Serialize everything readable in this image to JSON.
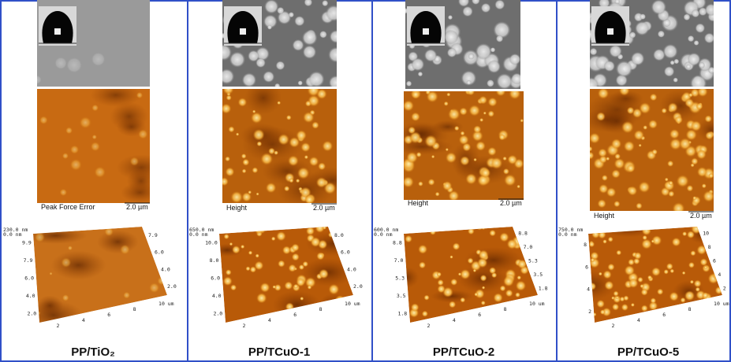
{
  "panels": [
    {
      "caption": "PP/TiO₂",
      "afm_label": "Peak Force Error",
      "scale_bar": "2.0 µm",
      "z_range": [
        "230.0 nm",
        "0.0 nm"
      ],
      "left_axis": [
        "9.9",
        "7.9",
        "6.0",
        "4.0",
        "2.0"
      ],
      "right_axis": [
        "7.9",
        "6.0",
        "4.0",
        "2.0"
      ],
      "bottom_axis": [
        "2",
        "4",
        "6",
        "8",
        "10 um"
      ]
    },
    {
      "caption": "PP/TCuO-1",
      "afm_label": "Height",
      "scale_bar": "2.0 µm",
      "z_range": [
        "650.0 nm",
        "0.0 nm"
      ],
      "left_axis": [
        "10.0",
        "8.0",
        "6.0",
        "4.0",
        "2.0"
      ],
      "right_axis": [
        "8.0",
        "6.0",
        "4.0",
        "2.0"
      ],
      "bottom_axis": [
        "2",
        "4",
        "6",
        "8",
        "10 um"
      ]
    },
    {
      "caption": "PP/TCuO-2",
      "afm_label": "Height",
      "scale_bar": "2.0 µm",
      "z_range": [
        "600.0 nm",
        "0.0 nm"
      ],
      "left_axis": [
        "8.8",
        "7.0",
        "5.3",
        "3.5",
        "1.8"
      ],
      "right_axis": [
        "8.8",
        "7.0",
        "5.3",
        "3.5",
        "1.8"
      ],
      "bottom_axis": [
        "2",
        "4",
        "6",
        "8",
        "10 um"
      ]
    },
    {
      "caption": "PP/TCuO-5",
      "afm_label": "Height",
      "scale_bar": "2.0 µm",
      "z_range": [
        "750.0 nm",
        "0.0 nm"
      ],
      "left_axis": [
        "8",
        "6",
        "4",
        "2"
      ],
      "right_axis": [
        "10",
        "8",
        "6",
        "4",
        "2"
      ],
      "bottom_axis": [
        "2",
        "4",
        "6",
        "8",
        "10 um"
      ]
    }
  ]
}
